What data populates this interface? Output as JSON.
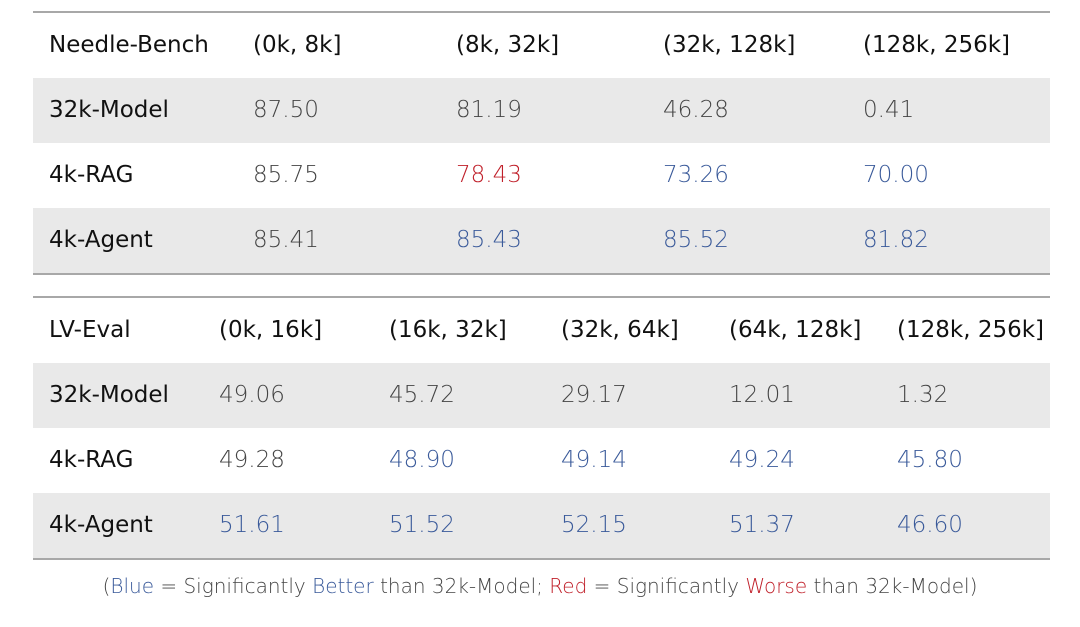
{
  "chart_data": [
    {
      "type": "table",
      "columns": [
        "Needle-Bench",
        "(0k, 8k]",
        "(8k, 32k]",
        "(32k, 128k]",
        "(128k, 256k]"
      ],
      "rows": [
        {
          "label": "32k-Model",
          "values": [
            "87.50",
            "81.19",
            "46.28",
            "0.41"
          ],
          "styles": [
            "normal",
            "normal",
            "normal",
            "normal"
          ]
        },
        {
          "label": "4k-RAG",
          "values": [
            "85.75",
            "78.43",
            "73.26",
            "70.00"
          ],
          "styles": [
            "normal",
            "red",
            "blue",
            "blue"
          ]
        },
        {
          "label": "4k-Agent",
          "values": [
            "85.41",
            "85.43",
            "85.52",
            "81.82"
          ],
          "styles": [
            "normal",
            "blue",
            "blue",
            "blue"
          ]
        }
      ]
    },
    {
      "type": "table",
      "columns": [
        "LV-Eval",
        "(0k, 16k]",
        "(16k, 32k]",
        "(32k, 64k]",
        "(64k, 128k]",
        "(128k, 256k]"
      ],
      "rows": [
        {
          "label": "32k-Model",
          "values": [
            "49.06",
            "45.72",
            "29.17",
            "12.01",
            "1.32"
          ],
          "styles": [
            "normal",
            "normal",
            "normal",
            "normal",
            "normal"
          ]
        },
        {
          "label": "4k-RAG",
          "values": [
            "49.28",
            "48.90",
            "49.14",
            "49.24",
            "45.80"
          ],
          "styles": [
            "normal",
            "blue",
            "blue",
            "blue",
            "blue"
          ]
        },
        {
          "label": "4k-Agent",
          "values": [
            "51.61",
            "51.52",
            "52.15",
            "51.37",
            "46.60"
          ],
          "styles": [
            "blue",
            "blue",
            "blue",
            "blue",
            "blue"
          ]
        }
      ]
    }
  ],
  "legend": {
    "open": "(",
    "blue_word": "Blue",
    "eq1": " = Significantly ",
    "better_word": "Better",
    "than1": " than 32k-Model; ",
    "red_word": "Red",
    "eq2": " = Significantly ",
    "worse_word": "Worse",
    "than2": " than 32k-Model)"
  },
  "colors": {
    "blue": "#3a5a9a",
    "red": "#c0202a",
    "shade": "#e9e9e9"
  }
}
